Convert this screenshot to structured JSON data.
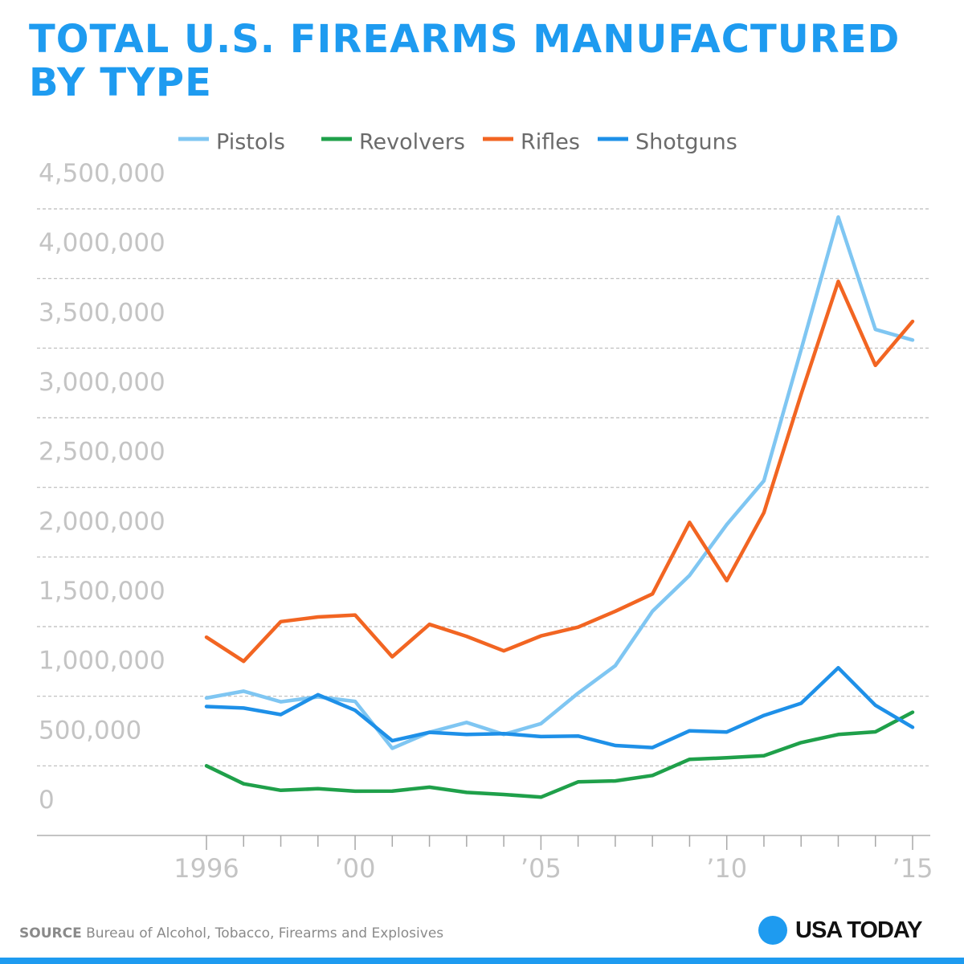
{
  "title_lines": [
    "TOTAL U.S. FIREARMS MANUFACTURED",
    "BY TYPE"
  ],
  "source_label": "SOURCE",
  "source_text": "Bureau of Alcohol, Tobacco, Firearms and Explosives",
  "logo_text": "USA TODAY",
  "colors": {
    "title": "#1e9bf0",
    "Pistols": "#7fc6f2",
    "Revolvers": "#1fa04a",
    "Rifles": "#f26522",
    "Shotguns": "#1e90e8",
    "axis_text": "#c4c4c4",
    "grid": "#bbbbbb"
  },
  "chart_data": {
    "type": "line",
    "title": "TOTAL U.S. FIREARMS MANUFACTURED BY TYPE",
    "xlabel": "",
    "ylabel": "",
    "x": [
      1996,
      1997,
      1998,
      1999,
      2000,
      2001,
      2002,
      2003,
      2004,
      2005,
      2006,
      2007,
      2008,
      2009,
      2010,
      2011,
      2012,
      2013,
      2014,
      2015
    ],
    "x_tick_values": [
      1996,
      2000,
      2005,
      2010,
      2015
    ],
    "x_tick_labels": [
      "1996",
      "’00",
      "’05",
      "’10",
      "’15"
    ],
    "ylim": [
      0,
      4500000
    ],
    "y_ticks": [
      0,
      500000,
      1000000,
      1500000,
      2000000,
      2500000,
      3000000,
      3500000,
      4000000,
      4500000
    ],
    "y_tick_labels": [
      "0",
      "500,000",
      "1,000,000",
      "1,500,000",
      "2,000,000",
      "2,500,000",
      "3,000,000",
      "3,500,000",
      "4,000,000",
      "4,500,000"
    ],
    "grid": true,
    "legend_position": "top",
    "series": [
      {
        "name": "Pistols",
        "values": [
          987000,
          1036000,
          960000,
          995000,
          963000,
          626000,
          741000,
          812000,
          726000,
          803000,
          1022000,
          1219000,
          1610000,
          1868000,
          2233000,
          2547000,
          3488000,
          4441000,
          3634000,
          3558000
        ]
      },
      {
        "name": "Revolvers",
        "values": [
          500000,
          371000,
          324000,
          336000,
          318000,
          319000,
          347000,
          309000,
          294000,
          275000,
          385000,
          392000,
          431000,
          547000,
          558000,
          573000,
          667000,
          725000,
          744000,
          885000
        ]
      },
      {
        "name": "Rifles",
        "values": [
          1424000,
          1251000,
          1536000,
          1569000,
          1583000,
          1283000,
          1516000,
          1430000,
          1326000,
          1433000,
          1496000,
          1610000,
          1735000,
          2248000,
          1830000,
          2318000,
          3168000,
          3979000,
          3376000,
          3692000
        ]
      },
      {
        "name": "Shotguns",
        "values": [
          926000,
          915000,
          868000,
          1011000,
          899000,
          680000,
          741000,
          726000,
          731000,
          710000,
          714000,
          646000,
          631000,
          752000,
          743000,
          862000,
          949000,
          1204000,
          935000,
          777000
        ]
      }
    ]
  }
}
